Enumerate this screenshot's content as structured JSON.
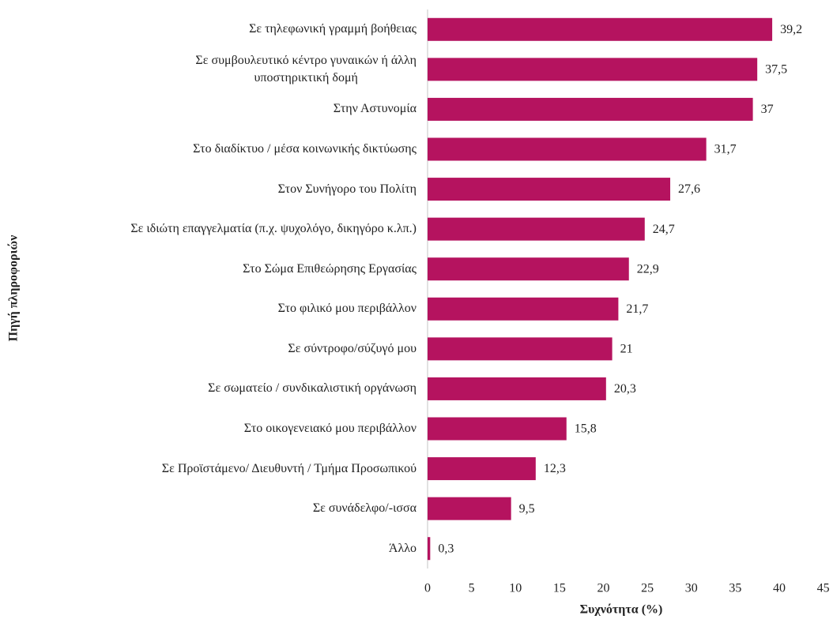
{
  "chart_data": {
    "type": "barh",
    "categories": [
      "Σε τηλεφωνική γραμμή βοήθειας",
      "Σε συμβουλευτικό κέντρο γυναικών  ή άλλη\nυποστηρικτική δομή",
      "Στην Αστυνομία",
      "Στο διαδίκτυο / μέσα κοινωνικής δικτύωσης",
      "Στον Συνήγορο του Πολίτη",
      "Σε ιδιώτη επαγγελματία (π.χ. ψυχολόγο, δικηγόρο κ.λπ.)",
      "Στο Σώμα Επιθεώρησης Εργασίας",
      "Στο φιλικό μου περιβάλλον",
      "Σε σύντροφο/σύζυγό μου",
      "Σε σωματείο / συνδικαλιστική οργάνωση",
      "Στο οικογενειακό μου περιβάλλον",
      "Σε Προϊστάμενο/ Διευθυντή / Τμήμα Προσωπικού",
      "Σε συνάδελφο/-ισσα",
      "Άλλο"
    ],
    "values": [
      39.2,
      37.5,
      37,
      31.7,
      27.6,
      24.7,
      22.9,
      21.7,
      21,
      20.3,
      15.8,
      12.3,
      9.5,
      0.3
    ],
    "value_labels": [
      "39,2",
      "37,5",
      "37",
      "31,7",
      "27,6",
      "24,7",
      "22,9",
      "21,7",
      "21",
      "20,3",
      "15,8",
      "12,3",
      "9,5",
      "0,3"
    ],
    "color": "#b5135f",
    "xlim": [
      0,
      45
    ],
    "xticks": [
      0,
      5,
      10,
      15,
      20,
      25,
      30,
      35,
      40,
      45
    ],
    "xlabel": "Συχνότητα (%)",
    "ylabel": "Πηγή πληροφοριών",
    "grid": false
  }
}
